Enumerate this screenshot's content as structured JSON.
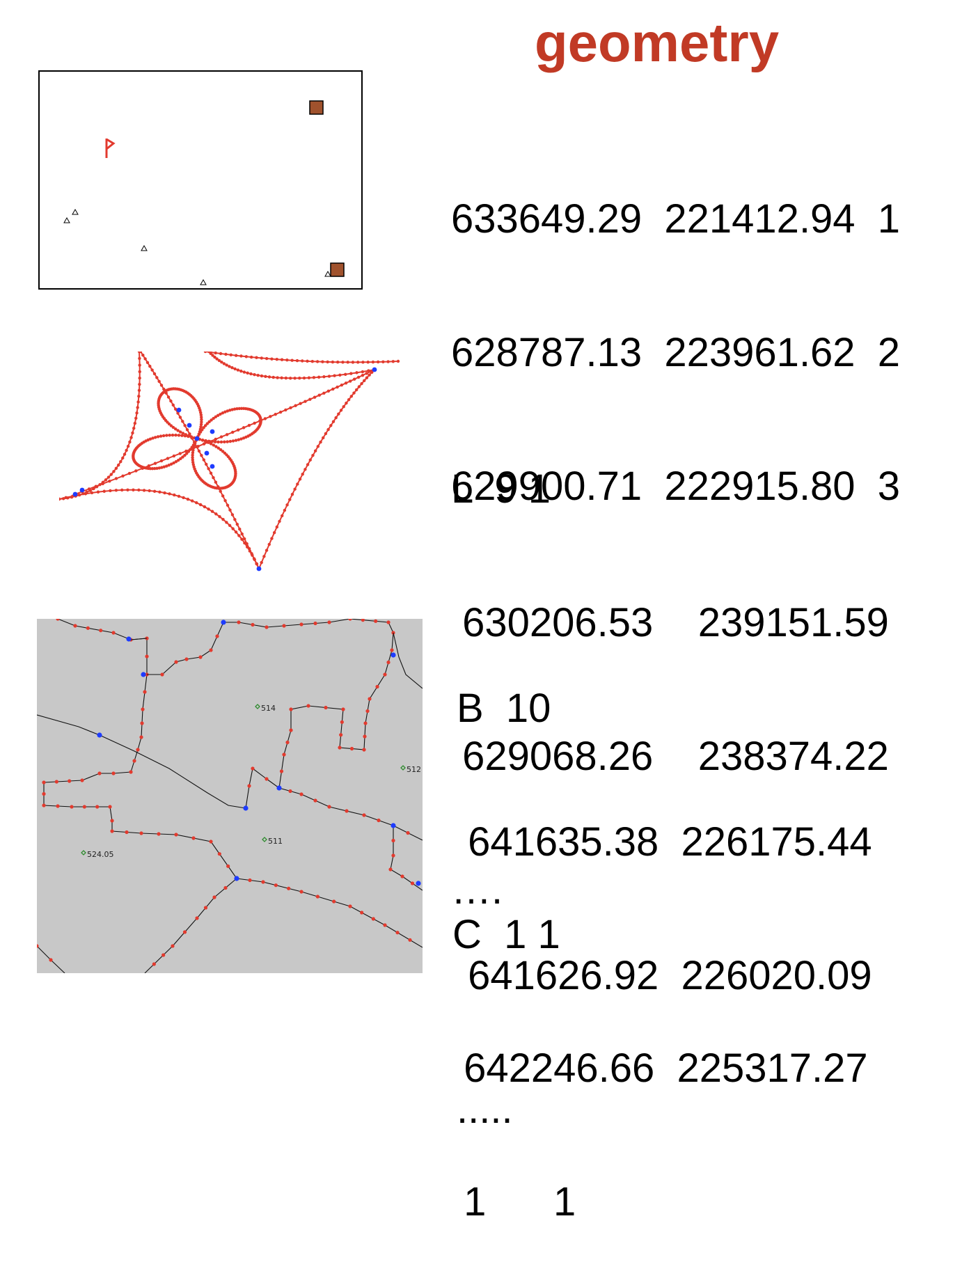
{
  "title": "geometry",
  "points_block": {
    "rows": [
      "633649.29  221412.94  1",
      "628787.13  223961.62  2",
      "629900.71  222915.80  3"
    ]
  },
  "lines_block": {
    "header": "L  9 1",
    "rows": [
      " 630206.53    239151.59",
      " 629068.26    238374.22",
      "…."
    ]
  },
  "boundary_block": {
    "header": "B  10",
    "rows": [
      " 641635.38  226175.44",
      " 641626.92  226020.09",
      "....."
    ]
  },
  "centroid_block": {
    "header": "C  1 1",
    "rows": [
      " 642246.66  225317.27",
      " 1      1"
    ]
  },
  "area_labels": [
    "514",
    "512",
    "511",
    "524.05"
  ],
  "colors": {
    "title": "#C13A25",
    "vertex": "#E23A2E",
    "node": "#1E3CFF",
    "square": "#A0522D",
    "flag": "#E23A2E",
    "area_background": "#C8C8C8"
  }
}
